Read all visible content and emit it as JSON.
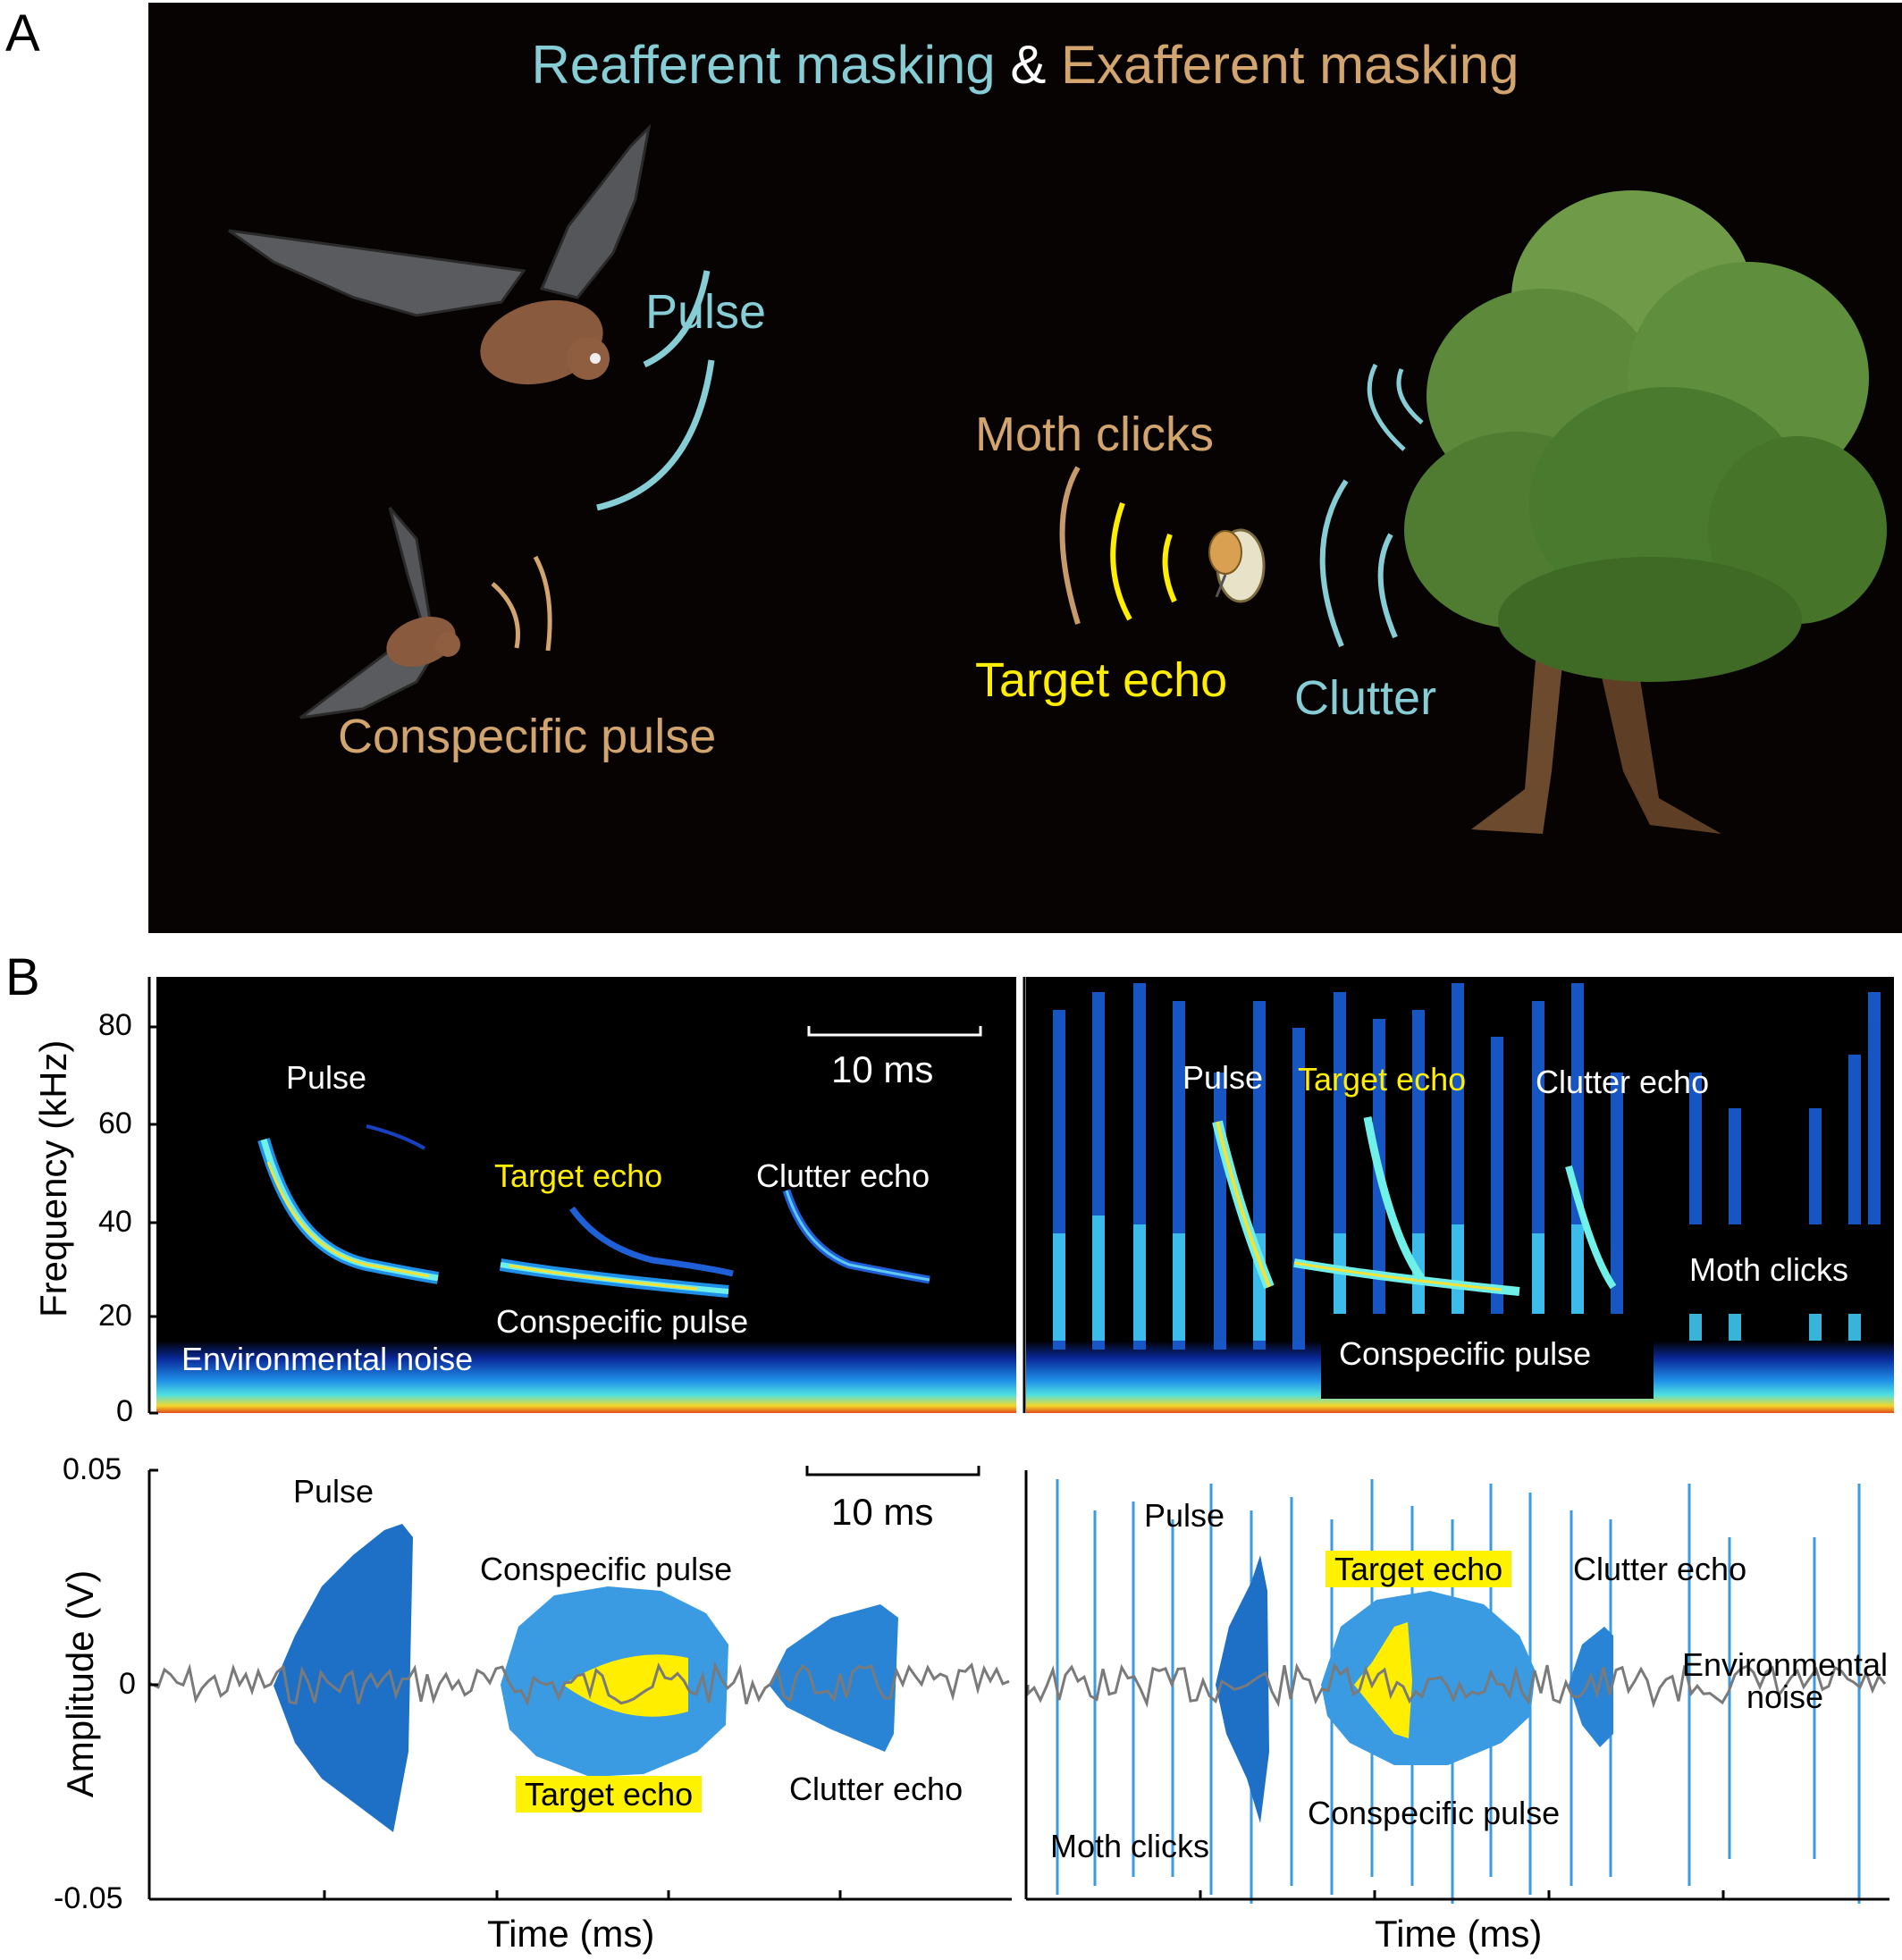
{
  "panels": {
    "a": "A",
    "b": "B"
  },
  "scene": {
    "title_reafferent": "Reafferent masking",
    "title_amp": "&",
    "title_exafferent": "Exafferent masking",
    "pulse": "Pulse",
    "conspecific_pulse": "Conspecific pulse",
    "moth_clicks": "Moth clicks",
    "target_echo": "Target echo",
    "clutter": "Clutter"
  },
  "spectrogram": {
    "ylabel": "Frequency (kHz)",
    "yticks": [
      "80",
      "60",
      "40",
      "20",
      "0"
    ],
    "scalebar": "10 ms",
    "left": {
      "pulse": "Pulse",
      "target_echo": "Target echo",
      "clutter_echo": "Clutter echo",
      "conspecific_pulse": "Conspecific pulse",
      "environmental_noise": "Environmental noise"
    },
    "right": {
      "pulse": "Pulse",
      "target_echo": "Target echo",
      "clutter_echo": "Clutter echo",
      "moth_clicks": "Moth clicks",
      "conspecific_pulse": "Conspecific pulse"
    }
  },
  "waveform": {
    "ylabel": "Amplitude (V)",
    "yticks": [
      "0.05",
      "0",
      "-0.05"
    ],
    "xlabel": "Time (ms)",
    "scalebar": "10 ms",
    "left": {
      "pulse": "Pulse",
      "conspecific_pulse": "Conspecific pulse",
      "target_echo": "Target echo",
      "clutter_echo": "Clutter echo"
    },
    "right": {
      "pulse": "Pulse",
      "target_echo": "Target echo",
      "clutter_echo": "Clutter echo",
      "environmental_noise": "Environmental noise",
      "conspecific_pulse": "Conspecific pulse",
      "moth_clicks": "Moth clicks"
    }
  },
  "colors": {
    "cyan": "#86cdd6",
    "tan": "#d2a56e",
    "yellow": "#ffee00",
    "wave_dark": "#1e6fc6",
    "wave_light": "#3a9ae2",
    "noise": "#7a7a7a"
  }
}
